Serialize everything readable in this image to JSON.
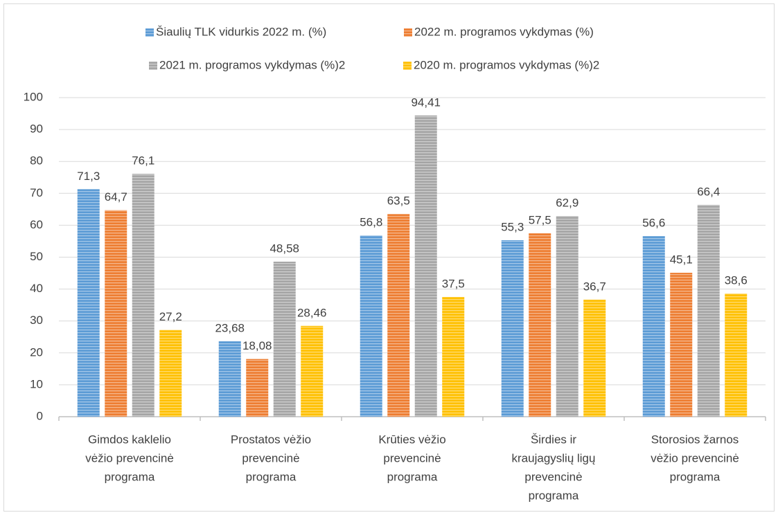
{
  "chart_data": {
    "type": "bar",
    "categories": [
      [
        "Gimdos kaklelio",
        "vėžio prevencinė",
        "programa"
      ],
      [
        "Prostatos vėžio",
        "prevencinė",
        "programa"
      ],
      [
        "Krūties vėžio",
        "prevencinė",
        "programa"
      ],
      [
        "Širdies ir",
        "kraujagyslių ligų",
        "prevencinė",
        "programa"
      ],
      [
        "Storosios žarnos",
        "vėžio prevencinė",
        "programa"
      ]
    ],
    "series": [
      {
        "name": "Šiaulių TLK vidurkis 2022 m. (%)",
        "color": "#5b9bd5",
        "values": [
          71.3,
          23.68,
          56.8,
          55.3,
          56.6
        ],
        "value_labels": [
          "71,3",
          "23,68",
          "56,8",
          "55,3",
          "56,6"
        ]
      },
      {
        "name": "2022 m. programos vykdymas (%)",
        "color": "#ed7d31",
        "values": [
          64.7,
          18.08,
          63.5,
          57.5,
          45.1
        ],
        "value_labels": [
          "64,7",
          "18,08",
          "63,5",
          "57,5",
          "45,1"
        ]
      },
      {
        "name": "2021 m. programos vykdymas (%)2",
        "color": "#a5a5a5",
        "values": [
          76.1,
          48.58,
          94.41,
          62.9,
          66.4
        ],
        "value_labels": [
          "76,1",
          "48,58",
          "94,41",
          "62,9",
          "66,4"
        ]
      },
      {
        "name": "2020 m. programos vykdymas (%)2",
        "color": "#ffc000",
        "values": [
          27.2,
          28.46,
          37.5,
          36.7,
          38.6
        ],
        "value_labels": [
          "27,2",
          "28,46",
          "37,5",
          "36,7",
          "38,6"
        ]
      }
    ],
    "ylim": [
      0,
      100
    ],
    "yticks": [
      0,
      10,
      20,
      30,
      40,
      50,
      60,
      70,
      80,
      90,
      100
    ],
    "grid": true,
    "legend": "top"
  }
}
